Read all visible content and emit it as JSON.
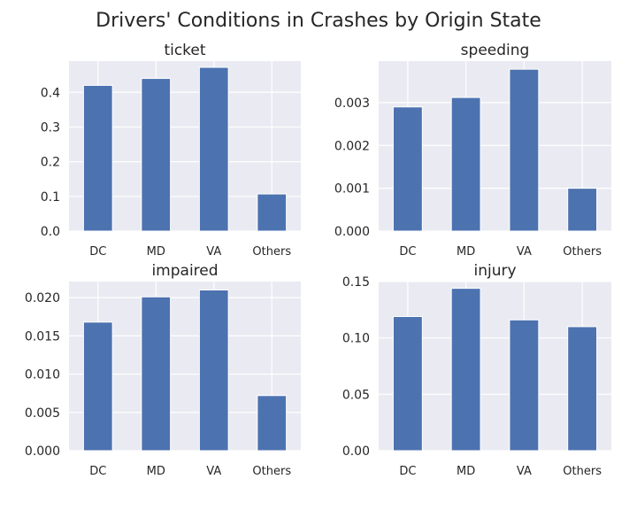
{
  "figure": {
    "title": "Drivers' Conditions in Crashes by Origin State"
  },
  "chart_data": [
    {
      "type": "bar",
      "title": "ticket",
      "categories": [
        "DC",
        "MD",
        "VA",
        "Others"
      ],
      "values": [
        0.42,
        0.44,
        0.472,
        0.107
      ],
      "ylim": [
        0,
        0.49
      ],
      "yticks": [
        0.0,
        0.1,
        0.2,
        0.3,
        0.4
      ],
      "ytick_labels": [
        "0.0",
        "0.1",
        "0.2",
        "0.3",
        "0.4"
      ],
      "xlabel": "",
      "ylabel": "",
      "grid": true,
      "color": "#4c72b0"
    },
    {
      "type": "bar",
      "title": "speeding",
      "categories": [
        "DC",
        "MD",
        "VA",
        "Others"
      ],
      "values": [
        0.0029,
        0.00312,
        0.00378,
        0.001
      ],
      "ylim": [
        0,
        0.00397
      ],
      "yticks": [
        0.0,
        0.001,
        0.002,
        0.003
      ],
      "ytick_labels": [
        "0.000",
        "0.001",
        "0.002",
        "0.003"
      ],
      "xlabel": "",
      "ylabel": "",
      "grid": true,
      "color": "#4c72b0"
    },
    {
      "type": "bar",
      "title": "impaired",
      "categories": [
        "DC",
        "MD",
        "VA",
        "Others"
      ],
      "values": [
        0.0168,
        0.0201,
        0.021,
        0.0072
      ],
      "ylim": [
        0,
        0.0221
      ],
      "yticks": [
        0.0,
        0.005,
        0.01,
        0.015,
        0.02
      ],
      "ytick_labels": [
        "0.000",
        "0.005",
        "0.010",
        "0.015",
        "0.020"
      ],
      "xlabel": "",
      "ylabel": "",
      "grid": true,
      "color": "#4c72b0"
    },
    {
      "type": "bar",
      "title": "injury",
      "categories": [
        "DC",
        "MD",
        "VA",
        "Others"
      ],
      "values": [
        0.119,
        0.144,
        0.116,
        0.11
      ],
      "ylim": [
        0,
        0.15
      ],
      "yticks": [
        0.0,
        0.05,
        0.1,
        0.15
      ],
      "ytick_labels": [
        "0.00",
        "0.05",
        "0.10",
        "0.15"
      ],
      "xlabel": "",
      "ylabel": "",
      "grid": true,
      "color": "#4c72b0"
    }
  ]
}
